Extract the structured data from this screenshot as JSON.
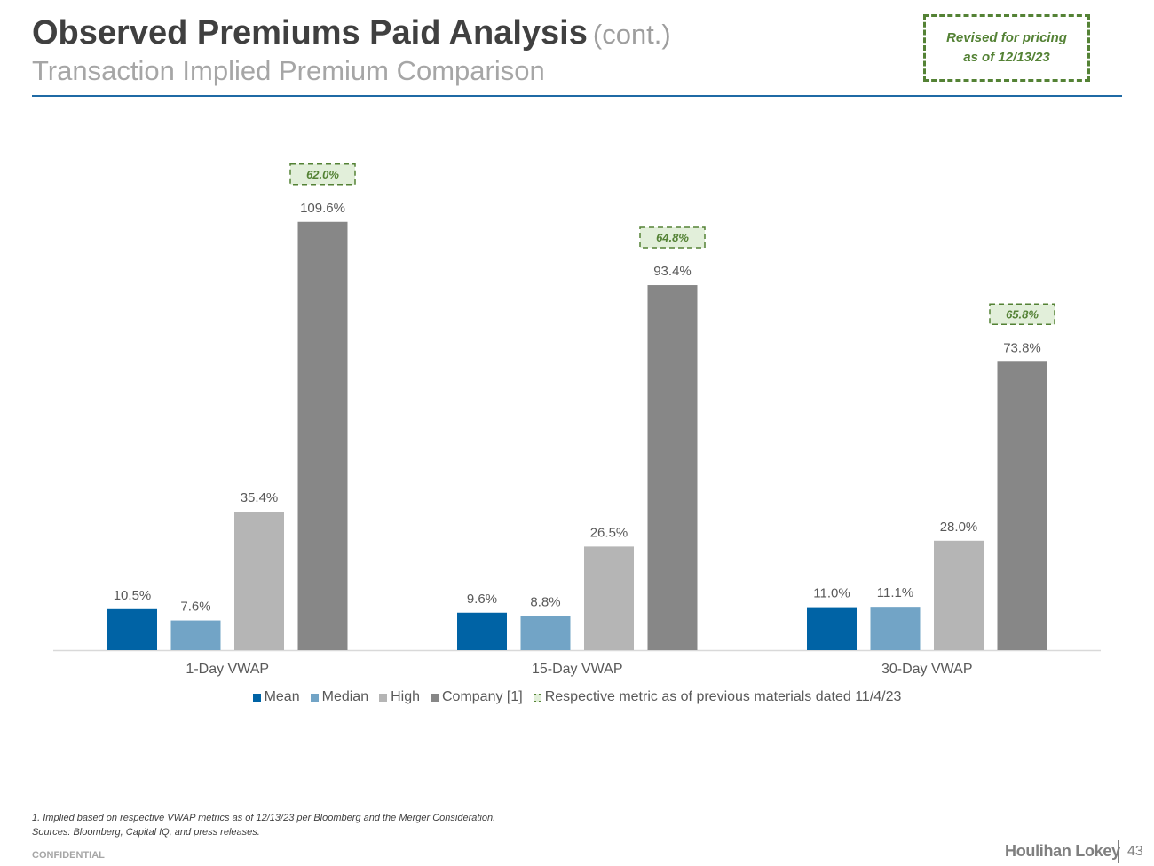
{
  "header": {
    "title": "Observed Premiums Paid Analysis",
    "title_suffix": "(cont.)",
    "subtitle": "Transaction Implied Premium Comparison"
  },
  "revised_box": {
    "text": "Revised for pricing as of 12/13/23"
  },
  "chart_data": {
    "type": "bar",
    "title": "",
    "xlabel": "",
    "ylabel": "",
    "ylim": [
      0,
      120
    ],
    "categories": [
      "1-Day VWAP",
      "15-Day VWAP",
      "30-Day VWAP"
    ],
    "series": [
      {
        "name": "Mean",
        "color": "#0063a5",
        "values": [
          10.5,
          9.6,
          11.0
        ],
        "labels": [
          "10.5%",
          "9.6%",
          "11.0%"
        ]
      },
      {
        "name": "Median",
        "color": "#72a4c6",
        "values": [
          7.6,
          8.8,
          11.1
        ],
        "labels": [
          "7.6%",
          "8.8%",
          "11.1%"
        ]
      },
      {
        "name": "High",
        "color": "#b5b5b5",
        "values": [
          35.4,
          26.5,
          28.0
        ],
        "labels": [
          "35.4%",
          "26.5%",
          "28.0%"
        ]
      },
      {
        "name": "Company [1]",
        "color": "#878787",
        "values": [
          109.6,
          93.4,
          73.8
        ],
        "labels": [
          "109.6%",
          "93.4%",
          "73.8%"
        ]
      }
    ],
    "previous_metrics": {
      "name": "Respective metric as of previous materials dated 11/4/23",
      "values": [
        62.0,
        64.8,
        65.8
      ],
      "labels": [
        "62.0%",
        "64.8%",
        "65.8%"
      ],
      "color": "#548235",
      "fill": "#e2efda"
    },
    "legend_position": "bottom"
  },
  "footnotes": {
    "note1": "1. Implied based on respective VWAP metrics as of 12/13/23 per Bloomberg and the Merger Consideration.",
    "sources": "Sources: Bloomberg, Capital IQ, and press releases."
  },
  "footer": {
    "confidential": "CONFIDENTIAL",
    "brand": "Houlihan Lokey",
    "page_number": "43"
  }
}
